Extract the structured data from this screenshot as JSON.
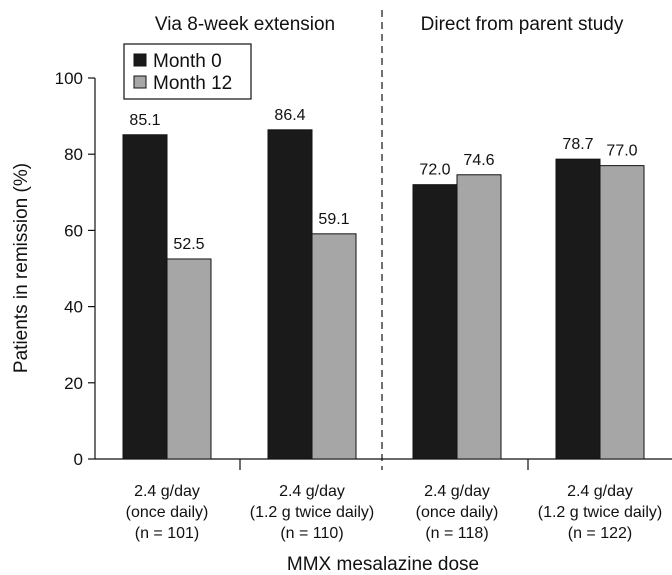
{
  "chart_data": {
    "type": "bar",
    "xlabel": "MMX mesalazine dose",
    "ylabel": "Patients in remission (%)",
    "ylim": [
      0,
      100
    ],
    "yticks": [
      "0",
      "20",
      "40",
      "60",
      "80",
      "100"
    ],
    "grid": false,
    "legend_position": "top-left",
    "group_titles": [
      "Via 8-week extension",
      "Direct from parent study"
    ],
    "categories": [
      [
        "2.4 g/day",
        "(once daily)",
        "(n = 101)"
      ],
      [
        "2.4 g/day",
        "(1.2 g twice daily)",
        "(n = 110)"
      ],
      [
        "2.4 g/day",
        "(once daily)",
        "(n = 118)"
      ],
      [
        "2.4 g/day",
        "(1.2 g twice daily)",
        "(n = 122)"
      ]
    ],
    "series": [
      {
        "name": "Month 0",
        "color": "#1a1a1a",
        "values": [
          85.1,
          86.4,
          72.0,
          78.7
        ],
        "labels": [
          "85.1",
          "86.4",
          "72.0",
          "78.7"
        ]
      },
      {
        "name": "Month 12",
        "color": "#a6a6a6",
        "values": [
          52.5,
          59.1,
          74.6,
          77.0
        ],
        "labels": [
          "52.5",
          "59.1",
          "74.6",
          "77.0"
        ]
      }
    ]
  }
}
